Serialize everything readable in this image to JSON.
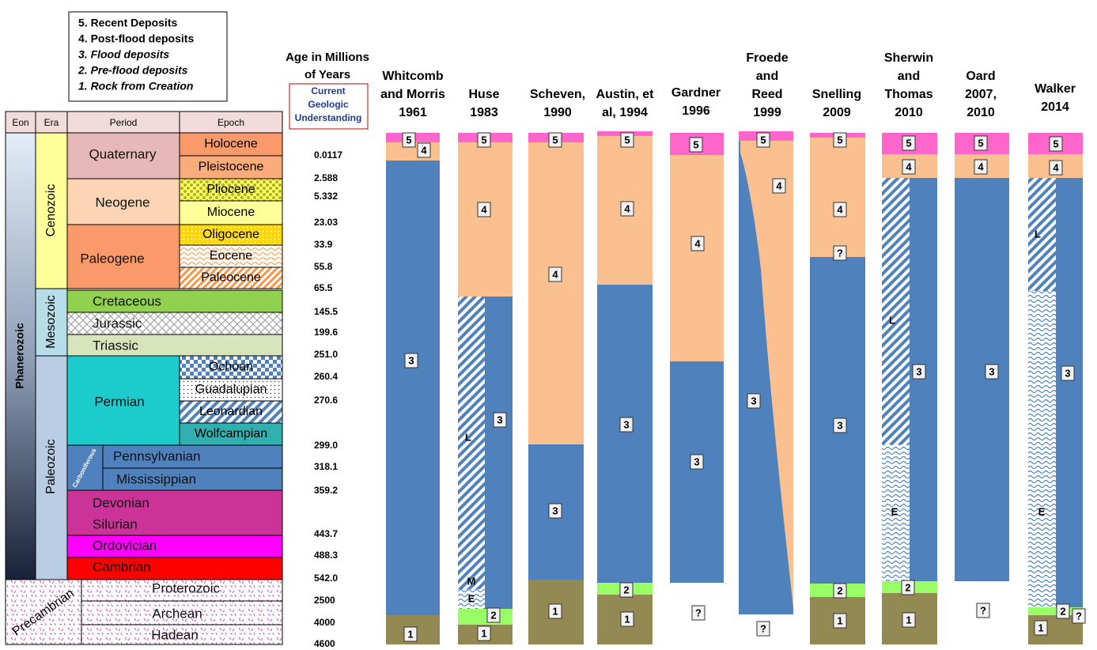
{
  "legend": {
    "items": [
      "5. Recent Deposits",
      "4. Post-flood deposits",
      "3. Flood deposits",
      "2. Pre-flood deposits",
      "1. Rock from Creation"
    ]
  },
  "age_scale": {
    "title": [
      "Age in Millions",
      "of Years"
    ],
    "subtitle": [
      "Current",
      "Geologic",
      "Understanding"
    ],
    "ages": [
      "0.0117",
      "2.588",
      "5.332",
      "23.03",
      "33.9",
      "55.8",
      "65.5",
      "145.5",
      "199.6",
      "251.0",
      "260.4",
      "270.6",
      "299.0",
      "318.1",
      "359.2",
      "443.7",
      "488.3",
      "542.0",
      "2500",
      "4000",
      "4600"
    ]
  },
  "table": {
    "headers": [
      "Eon",
      "Era",
      "Period",
      "Epoch"
    ],
    "eons": [
      "Phanerozoic",
      "Precambrian"
    ],
    "eras": [
      "Cenozoic",
      "Mesozoic",
      "Paleozoic"
    ],
    "periods": [
      "Quaternary",
      "Neogene",
      "Paleogene",
      "Cretaceous",
      "Jurassic",
      "Triassic",
      "Permian",
      "Carboniferous",
      "Pennsylvanian",
      "Mississippian",
      "Devonian",
      "Silurian",
      "Ordovician",
      "Cambrian",
      "Proterozoic",
      "Archean",
      "Hadean"
    ],
    "epochs": [
      "Holocene",
      "Pleistocene",
      "Pliocene",
      "Miocene",
      "Oligocene",
      "Eocene",
      "Paleocene",
      "Ochoan",
      "Guadalupian",
      "Leonardian",
      "Wolfcampian"
    ]
  },
  "authors": [
    {
      "name": [
        "Whitcomb",
        "and Morris",
        "1961"
      ],
      "labels": [
        "5",
        "4",
        "3",
        "1"
      ]
    },
    {
      "name": [
        "Huse",
        "1983"
      ],
      "labels": [
        "5",
        "4",
        "L",
        "3",
        "M",
        "E",
        "2",
        "1"
      ]
    },
    {
      "name": [
        "Scheven,",
        "1990"
      ],
      "labels": [
        "5",
        "4",
        "3",
        "1"
      ]
    },
    {
      "name": [
        "Austin, et",
        "al, 1994"
      ],
      "labels": [
        "5",
        "4",
        "3",
        "2",
        "1"
      ]
    },
    {
      "name": [
        "Gardner",
        "1996"
      ],
      "labels": [
        "5",
        "4",
        "3",
        "?"
      ]
    },
    {
      "name": [
        "Froede",
        "and",
        "Reed",
        "1999"
      ],
      "labels": [
        "5",
        "4",
        "3",
        "?"
      ]
    },
    {
      "name": [
        "Snelling",
        "2009"
      ],
      "labels": [
        "5",
        "4",
        "?",
        "3",
        "2",
        "1"
      ]
    },
    {
      "name": [
        "Sherwin",
        "and",
        "Thomas",
        "2010"
      ],
      "labels": [
        "5",
        "4",
        "L",
        "E",
        "3",
        "2",
        "1"
      ]
    },
    {
      "name": [
        "Oard",
        "2007,",
        "2010"
      ],
      "labels": [
        "5",
        "4",
        "3",
        "?"
      ]
    },
    {
      "name": [
        "Walker",
        "2014"
      ],
      "labels": [
        "5",
        "4",
        "L",
        "E",
        "3",
        "2",
        "1",
        "?"
      ]
    }
  ]
}
